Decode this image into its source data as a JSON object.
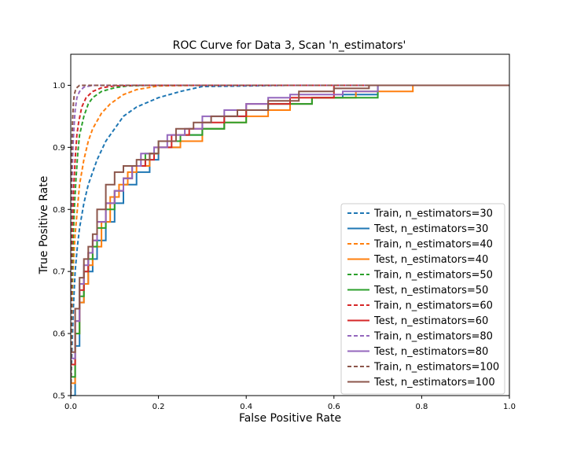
{
  "chart_data": {
    "type": "line",
    "title": "ROC Curve for Data 3, Scan 'n_estimators'",
    "xlabel": "False Positive Rate",
    "ylabel": "True Positive Rate",
    "xlim": [
      0.0,
      1.0
    ],
    "ylim": [
      0.5,
      1.05
    ],
    "xticks": [
      "0.0",
      "0.2",
      "0.4",
      "0.6",
      "0.8",
      "1.0"
    ],
    "yticks": [
      "0.5",
      "0.6",
      "0.7",
      "0.8",
      "0.9",
      "1.0"
    ],
    "grid": false,
    "legend_position": "lower-right",
    "series": [
      {
        "name": "Train, n_estimators=30",
        "color": "#1f77b4",
        "style": "dashed",
        "x": [
          0,
          0.003,
          0.006,
          0.01,
          0.015,
          0.02,
          0.03,
          0.04,
          0.05,
          0.06,
          0.08,
          0.1,
          0.12,
          0.15,
          0.2,
          0.25,
          0.3,
          0.5,
          1.0
        ],
        "y": [
          0.5,
          0.58,
          0.64,
          0.7,
          0.74,
          0.77,
          0.81,
          0.84,
          0.86,
          0.88,
          0.91,
          0.93,
          0.95,
          0.965,
          0.98,
          0.99,
          0.998,
          1.0,
          1.0
        ]
      },
      {
        "name": "Test, n_estimators=30",
        "color": "#1f77b4",
        "style": "solid",
        "x": [
          0,
          0.01,
          0.02,
          0.03,
          0.04,
          0.05,
          0.06,
          0.08,
          0.1,
          0.12,
          0.15,
          0.18,
          0.2,
          0.25,
          0.3,
          0.35,
          0.4,
          0.45,
          0.55,
          0.62,
          0.7,
          0.78,
          1.0
        ],
        "y": [
          0.5,
          0.5,
          0.58,
          0.65,
          0.68,
          0.7,
          0.72,
          0.75,
          0.78,
          0.81,
          0.84,
          0.86,
          0.88,
          0.9,
          0.92,
          0.93,
          0.95,
          0.96,
          0.97,
          0.98,
          0.985,
          1.0,
          1.0
        ]
      },
      {
        "name": "Train, n_estimators=40",
        "color": "#ff7f0e",
        "style": "dashed",
        "x": [
          0,
          0.002,
          0.005,
          0.01,
          0.015,
          0.02,
          0.03,
          0.04,
          0.05,
          0.07,
          0.09,
          0.12,
          0.15,
          0.2,
          0.3,
          1.0
        ],
        "y": [
          0.5,
          0.62,
          0.7,
          0.76,
          0.8,
          0.84,
          0.88,
          0.91,
          0.93,
          0.955,
          0.97,
          0.985,
          0.993,
          0.999,
          1.0,
          1.0
        ]
      },
      {
        "name": "Test, n_estimators=40",
        "color": "#ff7f0e",
        "style": "solid",
        "x": [
          0,
          0.01,
          0.02,
          0.03,
          0.04,
          0.05,
          0.07,
          0.09,
          0.11,
          0.13,
          0.15,
          0.18,
          0.2,
          0.25,
          0.3,
          0.35,
          0.4,
          0.45,
          0.5,
          0.55,
          0.65,
          0.78,
          0.86,
          1.0
        ],
        "y": [
          0.5,
          0.52,
          0.6,
          0.65,
          0.68,
          0.71,
          0.74,
          0.78,
          0.82,
          0.84,
          0.86,
          0.87,
          0.89,
          0.9,
          0.91,
          0.93,
          0.94,
          0.95,
          0.96,
          0.97,
          0.98,
          0.99,
          1.0,
          1.0
        ]
      },
      {
        "name": "Train, n_estimators=50",
        "color": "#2ca02c",
        "style": "dashed",
        "x": [
          0,
          0.002,
          0.005,
          0.008,
          0.012,
          0.016,
          0.02,
          0.03,
          0.04,
          0.05,
          0.07,
          0.1,
          0.13,
          0.18,
          1.0
        ],
        "y": [
          0.5,
          0.65,
          0.74,
          0.8,
          0.85,
          0.89,
          0.92,
          0.95,
          0.97,
          0.98,
          0.99,
          0.996,
          0.999,
          1.0,
          1.0
        ]
      },
      {
        "name": "Test, n_estimators=50",
        "color": "#2ca02c",
        "style": "solid",
        "x": [
          0,
          0.01,
          0.02,
          0.03,
          0.04,
          0.05,
          0.06,
          0.08,
          0.1,
          0.12,
          0.14,
          0.17,
          0.2,
          0.25,
          0.3,
          0.35,
          0.4,
          0.45,
          0.55,
          0.7,
          0.8,
          1.0
        ],
        "y": [
          0.5,
          0.53,
          0.6,
          0.66,
          0.7,
          0.72,
          0.74,
          0.77,
          0.8,
          0.83,
          0.85,
          0.87,
          0.89,
          0.91,
          0.92,
          0.93,
          0.94,
          0.96,
          0.97,
          0.98,
          1.0,
          1.0
        ]
      },
      {
        "name": "Train, n_estimators=60",
        "color": "#d62728",
        "style": "dashed",
        "x": [
          0,
          0.002,
          0.004,
          0.007,
          0.01,
          0.014,
          0.018,
          0.025,
          0.035,
          0.05,
          0.07,
          0.1,
          0.15,
          1.0
        ],
        "y": [
          0.5,
          0.7,
          0.78,
          0.84,
          0.88,
          0.92,
          0.94,
          0.965,
          0.98,
          0.99,
          0.996,
          0.999,
          1.0,
          1.0
        ]
      },
      {
        "name": "Test, n_estimators=60",
        "color": "#d62728",
        "style": "solid",
        "x": [
          0,
          0.01,
          0.02,
          0.03,
          0.04,
          0.05,
          0.06,
          0.08,
          0.1,
          0.12,
          0.14,
          0.17,
          0.19,
          0.23,
          0.27,
          0.3,
          0.35,
          0.4,
          0.5,
          0.6,
          0.75,
          1.0
        ],
        "y": [
          0.5,
          0.55,
          0.62,
          0.67,
          0.7,
          0.73,
          0.75,
          0.78,
          0.81,
          0.83,
          0.85,
          0.87,
          0.88,
          0.9,
          0.92,
          0.93,
          0.94,
          0.95,
          0.97,
          0.98,
          1.0,
          1.0
        ]
      },
      {
        "name": "Train, n_estimators=80",
        "color": "#9467bd",
        "style": "dashed",
        "x": [
          0,
          0.001,
          0.003,
          0.005,
          0.008,
          0.01,
          0.014,
          0.02,
          0.03,
          0.05,
          0.08,
          1.0
        ],
        "y": [
          0.5,
          0.76,
          0.85,
          0.9,
          0.94,
          0.96,
          0.98,
          0.99,
          0.997,
          1.0,
          1.0,
          1.0
        ]
      },
      {
        "name": "Test, n_estimators=80",
        "color": "#9467bd",
        "style": "solid",
        "x": [
          0,
          0.01,
          0.02,
          0.03,
          0.04,
          0.05,
          0.06,
          0.08,
          0.1,
          0.12,
          0.14,
          0.16,
          0.19,
          0.22,
          0.26,
          0.3,
          0.35,
          0.4,
          0.45,
          0.5,
          0.62,
          0.7,
          0.79,
          1.0
        ],
        "y": [
          0.5,
          0.56,
          0.62,
          0.68,
          0.71,
          0.73,
          0.75,
          0.78,
          0.81,
          0.83,
          0.85,
          0.87,
          0.89,
          0.9,
          0.92,
          0.93,
          0.95,
          0.96,
          0.97,
          0.98,
          0.985,
          0.99,
          1.0,
          1.0
        ]
      },
      {
        "name": "Train, n_estimators=100",
        "color": "#8c564b",
        "style": "dashed",
        "x": [
          0,
          0.001,
          0.002,
          0.004,
          0.006,
          0.008,
          0.012,
          0.02,
          0.05,
          1.0
        ],
        "y": [
          0.5,
          0.8,
          0.88,
          0.94,
          0.97,
          0.985,
          0.995,
          1.0,
          1.0,
          1.0
        ]
      },
      {
        "name": "Test, n_estimators=100",
        "color": "#8c564b",
        "style": "solid",
        "x": [
          0,
          0.01,
          0.02,
          0.03,
          0.04,
          0.05,
          0.06,
          0.08,
          0.1,
          0.12,
          0.15,
          0.18,
          0.2,
          0.24,
          0.28,
          0.32,
          0.38,
          0.45,
          0.52,
          0.6,
          0.68,
          0.78,
          1.0
        ],
        "y": [
          0.5,
          0.57,
          0.64,
          0.69,
          0.72,
          0.74,
          0.76,
          0.8,
          0.84,
          0.86,
          0.87,
          0.88,
          0.89,
          0.91,
          0.93,
          0.94,
          0.95,
          0.96,
          0.975,
          0.99,
          0.995,
          1.0,
          1.0
        ]
      }
    ]
  }
}
